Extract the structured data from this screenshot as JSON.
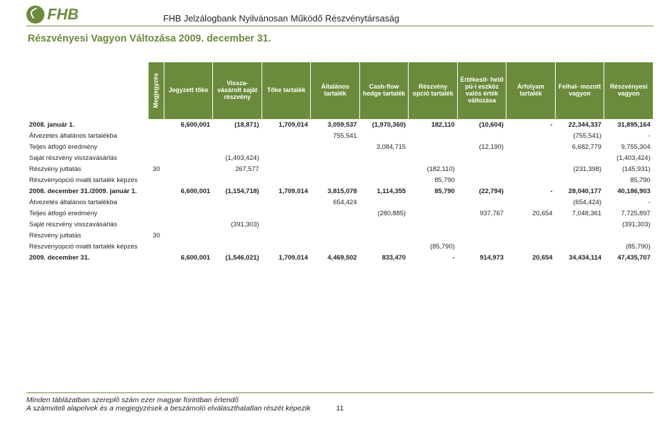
{
  "header": {
    "logo_text": "FHB",
    "company": "FHB Jelzálogbank Nyilvánosan Működő Részvénytársaság"
  },
  "title": "Részvényesi Vagyon Változása 2009. december 31.",
  "columns": [
    "Megjegyzés",
    "Jegyzett tőke",
    "Vissza-\nvásárolt\nsaját\nrészvény",
    "Tőke tartalék",
    "Általános\ntartalék",
    "Cash-flow\nhedge\ntartalék",
    "Részvény\nopció\ntartalék",
    "Értékesít-\nhető pü-i\neszköz\nvalós\nérték\nváltozása",
    "Árfolyam\ntartalék",
    "Felhal-\nmozott\nvagyon",
    "Részvényesi\nvagyon"
  ],
  "rows": [
    {
      "bold": true,
      "label": "2008. január 1.",
      "cells": [
        "",
        "6,600,001",
        "(18,871)",
        "1,709,014",
        "3,059,537",
        "(1,970,360)",
        "182,110",
        "(10,604)",
        "-",
        "22,344,337",
        "31,895,164"
      ]
    },
    {
      "bold": false,
      "label": "Átvezetés általános tartalékba",
      "cells": [
        "",
        "",
        "",
        "",
        "755,541",
        "",
        "",
        "",
        "",
        "(755,541)",
        "-"
      ]
    },
    {
      "bold": false,
      "label": "Teljes átfogó eredmény",
      "cells": [
        "",
        "",
        "",
        "",
        "",
        "3,084,715",
        "",
        "(12,190)",
        "",
        "6,682,779",
        "9,755,304"
      ]
    },
    {
      "bold": false,
      "label": "Saját részvény visszavásárlás",
      "cells": [
        "",
        "",
        "(1,403,424)",
        "",
        "",
        "",
        "",
        "",
        "",
        "",
        "(1,403,424)"
      ]
    },
    {
      "bold": false,
      "label": "Részvény juttatás",
      "cells": [
        "30",
        "",
        "267,577",
        "",
        "",
        "",
        "(182,110)",
        "",
        "",
        "(231,398)",
        "(145,931)"
      ]
    },
    {
      "bold": false,
      "label": "Részvényopció miatti tartalék képzés",
      "cells": [
        "",
        "",
        "",
        "",
        "",
        "",
        "85,790",
        "",
        "",
        "",
        "85,790"
      ]
    },
    {
      "bold": true,
      "label": "2008. december 31./2009. január 1.",
      "cells": [
        "",
        "6,600,001",
        "(1,154,718)",
        "1,709,014",
        "3,815,078",
        "1,114,355",
        "85,790",
        "(22,794)",
        "-",
        "28,040,177",
        "40,186,903"
      ]
    },
    {
      "bold": false,
      "label": "Átvezetés általános tartalékba",
      "cells": [
        "",
        "",
        "",
        "",
        "654,424",
        "",
        "",
        "",
        "",
        "(654,424)",
        "-"
      ]
    },
    {
      "bold": false,
      "label": "Teljes átfogó eredmény",
      "cells": [
        "",
        "",
        "",
        "",
        "",
        "(280,885)",
        "",
        "937,767",
        "20,654",
        "7,048,361",
        "7,725,897"
      ]
    },
    {
      "bold": false,
      "label": "Saját részvény visszavásárlás",
      "cells": [
        "",
        "",
        "(391,303)",
        "",
        "",
        "",
        "",
        "",
        "",
        "",
        "(391,303)"
      ]
    },
    {
      "bold": false,
      "label": "Részvény juttatás",
      "cells": [
        "30",
        "",
        "",
        "",
        "",
        "",
        "",
        "",
        "",
        "",
        ""
      ]
    },
    {
      "bold": false,
      "label": "Részvényopció miatti tartalék képzés",
      "cells": [
        "",
        "",
        "",
        "",
        "",
        "",
        "(85,790)",
        "",
        "",
        "",
        "(85,790)"
      ]
    },
    {
      "bold": true,
      "label": "2009. december 31.",
      "cells": [
        "",
        "6,600,001",
        "(1,546,021)",
        "1,709,014",
        "4,469,502",
        "833,470",
        "-",
        "914,973",
        "20,654",
        "34,434,114",
        "47,435,707"
      ]
    }
  ],
  "footer": {
    "line1": "Minden táblázatban szereplő szám ezer magyar forintban értendő",
    "line2": "A számviteli alapelvek és a megjegyzések a beszámoló elválaszthatatlan részét képezik",
    "page": "11"
  },
  "style": {
    "brand_color": "#6a8b3a",
    "text_color": "#231f20",
    "header_bg": "#6a8b3a",
    "header_fg": "#ffffff",
    "body_font_size": 9.5,
    "header_font_size": 9
  }
}
